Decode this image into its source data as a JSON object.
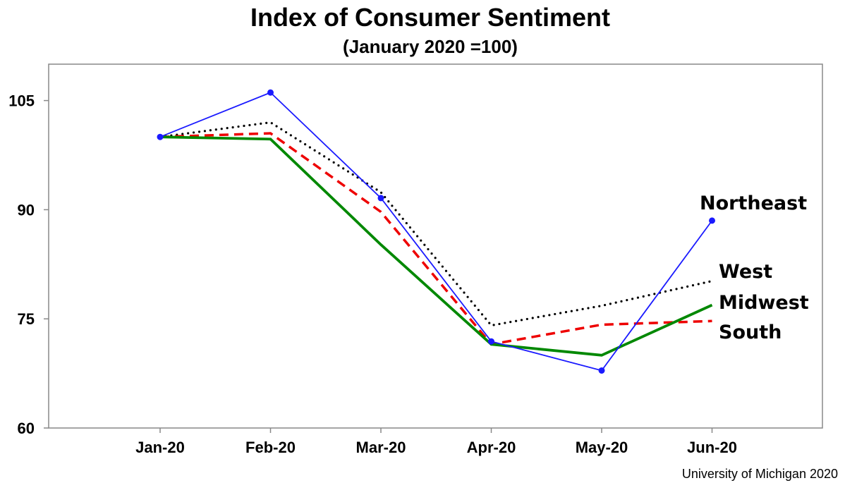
{
  "chart_data": {
    "type": "line",
    "title": "Index of Consumer Sentiment",
    "subtitle": "(January 2020 =100)",
    "categories": [
      "Jan-20",
      "Feb-20",
      "Mar-20",
      "Apr-20",
      "May-20",
      "Jun-20"
    ],
    "ylim": [
      60,
      110
    ],
    "yticks": [
      60,
      75,
      90,
      105
    ],
    "grid": false,
    "xlabel": "",
    "ylabel": "",
    "series": [
      {
        "name": "West",
        "color": "#000000",
        "style": "dotted",
        "values": [
          100,
          102.0,
          92.4,
          74.1,
          76.8,
          80.2
        ]
      },
      {
        "name": "South",
        "color": "#ee0000",
        "style": "dashed",
        "values": [
          100,
          100.5,
          89.7,
          71.5,
          74.2,
          74.7
        ]
      },
      {
        "name": "Midwest",
        "color": "#008800",
        "style": "solid",
        "values": [
          100,
          99.7,
          85.2,
          71.5,
          70.0,
          76.9
        ]
      },
      {
        "name": "Northeast",
        "color": "#1a1aff",
        "style": "solid-markers",
        "values": [
          100,
          106.1,
          91.6,
          71.9,
          67.9,
          88.5
        ]
      }
    ],
    "credit": "University of Michigan 2020"
  }
}
